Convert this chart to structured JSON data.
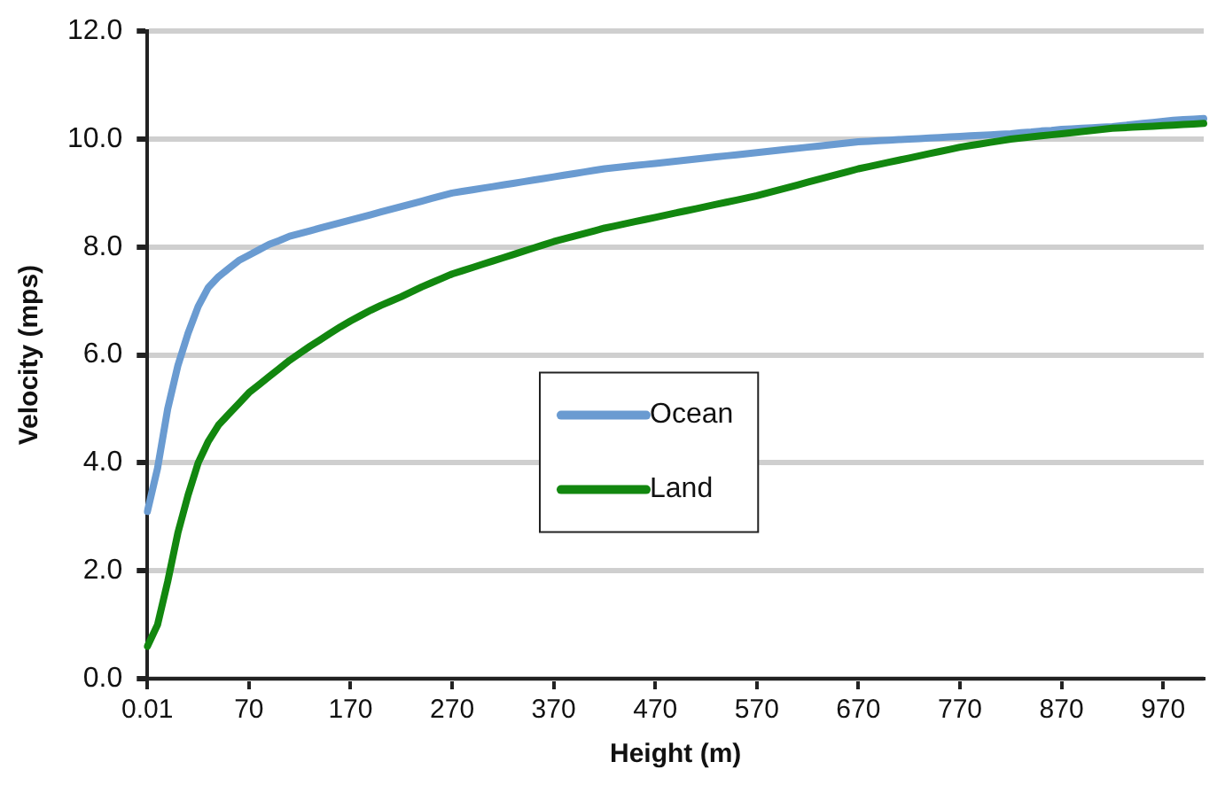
{
  "chart_data": {
    "type": "line",
    "xlabel": "Height (m)",
    "ylabel": "Velocity (mps)",
    "categories": [
      "0.01",
      null,
      null,
      null,
      null,
      null,
      null,
      null,
      null,
      null,
      "70",
      null,
      null,
      null,
      null,
      null,
      null,
      null,
      null,
      null,
      "170",
      null,
      null,
      null,
      null,
      null,
      null,
      null,
      null,
      null,
      "270",
      null,
      null,
      null,
      null,
      null,
      null,
      null,
      null,
      null,
      "370",
      null,
      null,
      null,
      null,
      null,
      null,
      null,
      null,
      null,
      "470",
      null,
      null,
      null,
      null,
      null,
      null,
      null,
      null,
      null,
      "570",
      null,
      null,
      null,
      null,
      null,
      null,
      null,
      null,
      null,
      "670",
      null,
      null,
      null,
      null,
      null,
      null,
      null,
      null,
      null,
      "770",
      null,
      null,
      null,
      null,
      null,
      null,
      null,
      null,
      null,
      "870",
      null,
      null,
      null,
      null,
      null,
      null,
      null,
      null,
      null,
      "970",
      null,
      null,
      null,
      null
    ],
    "series": [
      {
        "name": "Ocean",
        "color": "#6a9bd1",
        "values": [
          3.1,
          3.9,
          5.0,
          5.8,
          6.4,
          6.9,
          7.25,
          7.45,
          7.6,
          7.75,
          7.85,
          7.95,
          8.05,
          8.12,
          8.2,
          8.25,
          8.3,
          8.35,
          8.4,
          8.45,
          8.5,
          8.55,
          8.6,
          8.65,
          8.7,
          8.75,
          8.8,
          8.85,
          8.9,
          8.95,
          9.0,
          9.03,
          9.06,
          9.09,
          9.12,
          9.15,
          9.18,
          9.21,
          9.24,
          9.27,
          9.3,
          9.33,
          9.36,
          9.39,
          9.42,
          9.45,
          9.47,
          9.49,
          9.51,
          9.53,
          9.55,
          9.57,
          9.59,
          9.61,
          9.63,
          9.65,
          9.67,
          9.69,
          9.71,
          9.73,
          9.75,
          9.77,
          9.79,
          9.81,
          9.83,
          9.85,
          9.87,
          9.89,
          9.91,
          9.93,
          9.95,
          9.96,
          9.97,
          9.98,
          9.99,
          10.0,
          10.01,
          10.02,
          10.03,
          10.04,
          10.05,
          10.06,
          10.07,
          10.08,
          10.09,
          10.1,
          10.12,
          10.13,
          10.15,
          10.16,
          10.18,
          10.19,
          10.2,
          10.21,
          10.22,
          10.23,
          10.25,
          10.27,
          10.29,
          10.31,
          10.33,
          10.35,
          10.36,
          10.37,
          10.38
        ]
      },
      {
        "name": "Land",
        "color": "#12870f",
        "values": [
          0.6,
          1.0,
          1.8,
          2.7,
          3.4,
          4.0,
          4.4,
          4.7,
          4.9,
          5.1,
          5.3,
          5.45,
          5.6,
          5.75,
          5.9,
          6.03,
          6.16,
          6.28,
          6.4,
          6.52,
          6.63,
          6.73,
          6.83,
          6.92,
          7.0,
          7.08,
          7.17,
          7.26,
          7.34,
          7.42,
          7.5,
          7.56,
          7.62,
          7.68,
          7.74,
          7.8,
          7.86,
          7.92,
          7.98,
          8.04,
          8.1,
          8.15,
          8.2,
          8.25,
          8.3,
          8.35,
          8.39,
          8.43,
          8.47,
          8.51,
          8.55,
          8.59,
          8.63,
          8.67,
          8.71,
          8.75,
          8.79,
          8.83,
          8.87,
          8.91,
          8.95,
          9.0,
          9.05,
          9.1,
          9.15,
          9.2,
          9.25,
          9.3,
          9.35,
          9.4,
          9.45,
          9.49,
          9.53,
          9.57,
          9.61,
          9.65,
          9.69,
          9.73,
          9.77,
          9.81,
          9.85,
          9.88,
          9.91,
          9.94,
          9.97,
          10.0,
          10.02,
          10.04,
          10.06,
          10.08,
          10.1,
          10.12,
          10.14,
          10.16,
          10.18,
          10.2,
          10.21,
          10.22,
          10.23,
          10.24,
          10.25,
          10.26,
          10.27,
          10.28,
          10.29
        ]
      }
    ],
    "ylim": [
      0,
      12
    ],
    "yticks": [
      {
        "value": 0,
        "label": "0.0"
      },
      {
        "value": 2,
        "label": "2.0"
      },
      {
        "value": 4,
        "label": "4.0"
      },
      {
        "value": 6,
        "label": "6.0"
      },
      {
        "value": 8,
        "label": "8.0"
      },
      {
        "value": 10,
        "label": "10.0"
      },
      {
        "value": 12,
        "label": "12.0"
      }
    ],
    "grid": "y",
    "legend": "center",
    "marker": "none",
    "line_style": "solid"
  }
}
